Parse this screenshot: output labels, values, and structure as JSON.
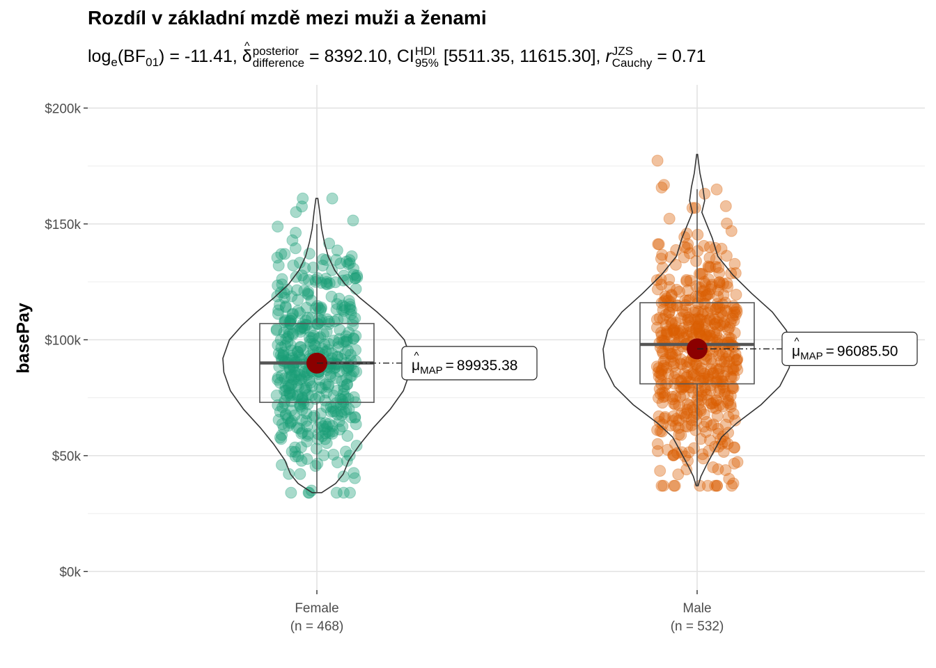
{
  "chart_data": {
    "type": "violin-box-jitter",
    "title": "Rozdíl v základní mzdě mezi muži a ženami",
    "subtitle": {
      "logBF_label": "log",
      "logBF_base": "e",
      "logBF_name": "(BF",
      "logBF_sub": "01",
      "logBF_value": ") = -11.41,",
      "delta_symbol": "δ",
      "delta_sup": "posterior",
      "delta_sub": "difference",
      "delta_value": "= 8392.10, CI",
      "ci_sup": "HDI",
      "ci_sub": "95%",
      "ci_value": "[5511.35, 11615.30],",
      "r_symbol": "r",
      "r_sup": "JZS",
      "r_sub": "Cauchy",
      "r_value": "= 0.71"
    },
    "ylabel": "basePay",
    "ylim": [
      -8000,
      210000
    ],
    "y_ticks": [
      0,
      50000,
      100000,
      150000,
      200000
    ],
    "y_tick_labels": [
      "$0k",
      "$50k",
      "$100k",
      "$150k",
      "$200k"
    ],
    "grid": true,
    "categories": [
      "Female\n(n = 468)",
      "Male\n(n = 532)"
    ],
    "groups": [
      {
        "name": "Female",
        "n_label": "(n = 468)",
        "n": 468,
        "color": "#1b9e77",
        "box": {
          "q1": 73000,
          "median": 90000,
          "q3": 107000,
          "whisker_low": 34000,
          "whisker_high": 150000
        },
        "min": 34000,
        "max": 161000,
        "map_estimate": 89935.38,
        "map_label": "89935.38",
        "mu_symbol": "μ",
        "mu_sub": "MAP",
        "mu_eq": "=",
        "density": [
          [
            34000,
            0.05
          ],
          [
            38000,
            0.2
          ],
          [
            42000,
            0.28
          ],
          [
            48000,
            0.34
          ],
          [
            55000,
            0.46
          ],
          [
            62000,
            0.6
          ],
          [
            70000,
            0.78
          ],
          [
            78000,
            0.92
          ],
          [
            86000,
            0.99
          ],
          [
            92000,
            1.0
          ],
          [
            100000,
            0.93
          ],
          [
            106000,
            0.8
          ],
          [
            112000,
            0.64
          ],
          [
            118000,
            0.46
          ],
          [
            124000,
            0.3
          ],
          [
            130000,
            0.19
          ],
          [
            136000,
            0.12
          ],
          [
            142000,
            0.08
          ],
          [
            148000,
            0.05
          ],
          [
            155000,
            0.03
          ],
          [
            161000,
            0.01
          ]
        ],
        "jitter_seed": 7
      },
      {
        "name": "Male",
        "n_label": "(n = 532)",
        "n": 532,
        "color": "#d95f02",
        "box": {
          "q1": 81000,
          "median": 98000,
          "q3": 116000,
          "whisker_low": 37000,
          "whisker_high": 165000
        },
        "min": 37000,
        "max": 180000,
        "map_estimate": 96085.5,
        "map_label": "96085.50",
        "mu_symbol": "μ",
        "mu_sub": "MAP",
        "mu_eq": "=",
        "density": [
          [
            37000,
            0.01
          ],
          [
            41000,
            0.04
          ],
          [
            46000,
            0.1
          ],
          [
            52000,
            0.18
          ],
          [
            58000,
            0.26
          ],
          [
            64000,
            0.42
          ],
          [
            72000,
            0.68
          ],
          [
            80000,
            0.88
          ],
          [
            88000,
            0.98
          ],
          [
            96000,
            1.0
          ],
          [
            104000,
            0.95
          ],
          [
            112000,
            0.8
          ],
          [
            120000,
            0.58
          ],
          [
            128000,
            0.38
          ],
          [
            136000,
            0.22
          ],
          [
            144000,
            0.16
          ],
          [
            150000,
            0.1
          ],
          [
            155000,
            0.05
          ],
          [
            160000,
            0.08
          ],
          [
            166000,
            0.06
          ],
          [
            172000,
            0.03
          ],
          [
            180000,
            0.005
          ]
        ],
        "jitter_seed": 13
      }
    ]
  }
}
